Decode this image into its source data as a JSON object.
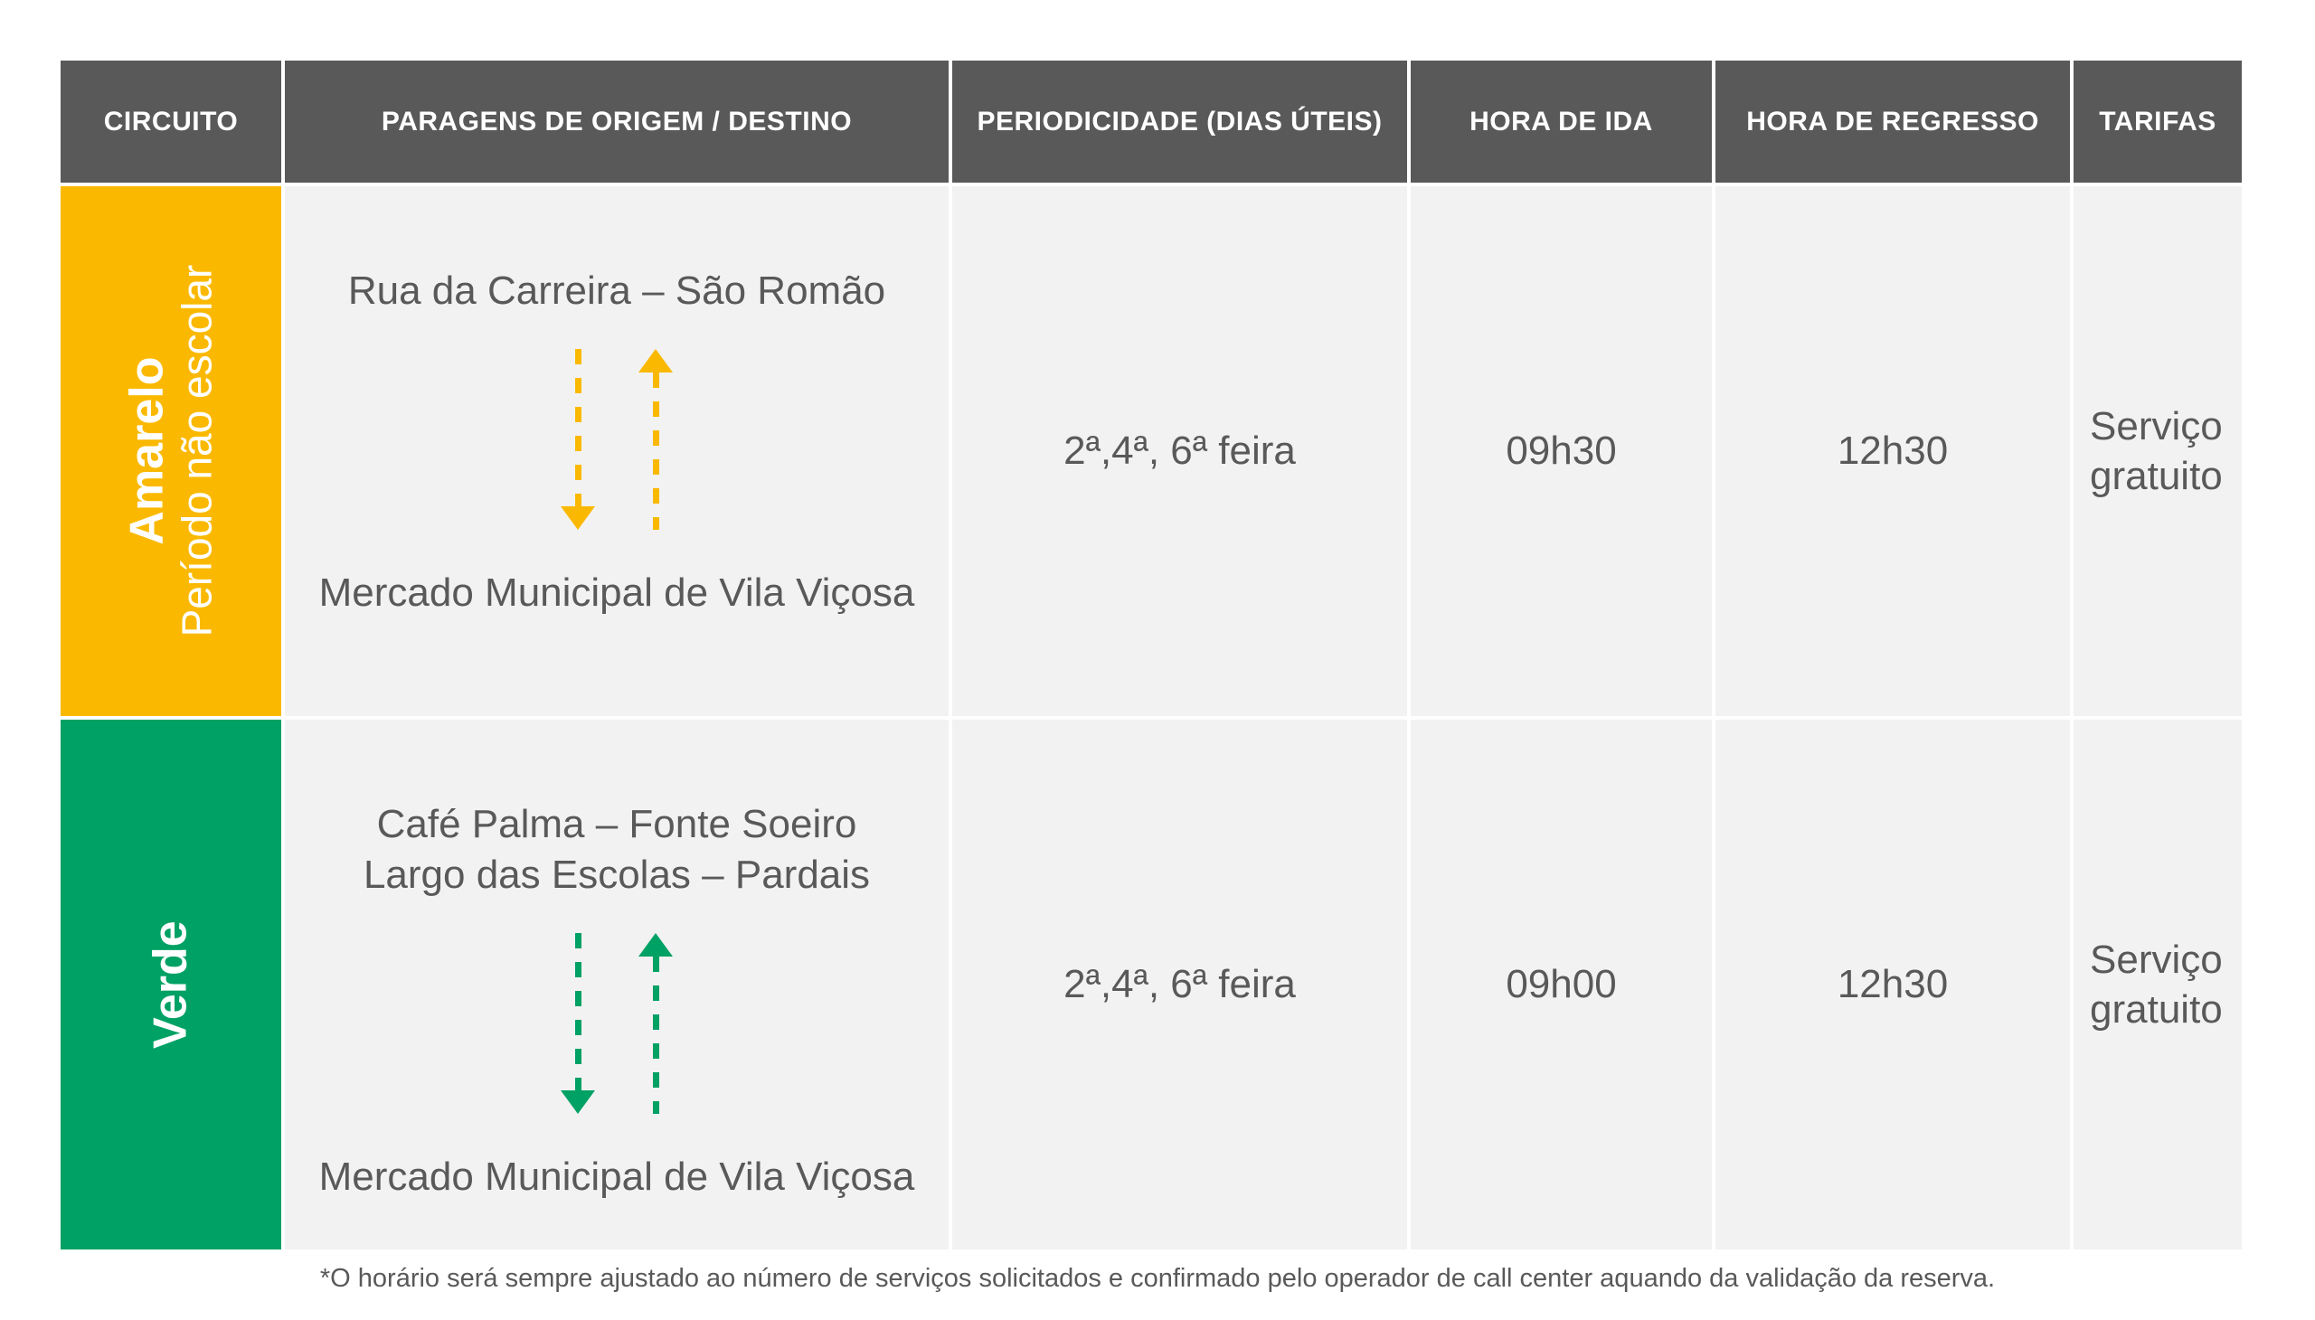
{
  "colors": {
    "header_bg": "#595959",
    "header_text": "#FFFFFF",
    "cell_bg": "#F2F2F2",
    "body_text": "#595959",
    "amarelo": "#FAB900",
    "verde": "#00A164"
  },
  "table": {
    "header": {
      "columns": [
        "CIRCUITO",
        "PARAGENS DE ORIGEM / DESTINO",
        "PERIODICIDADE (DIAS ÚTEIS)",
        "HORA DE IDA",
        "HORA DE REGRESSO",
        "TARIFAS"
      ]
    },
    "rows": [
      {
        "circuit": {
          "name": "Amarelo",
          "subtitle": "Período não escolar",
          "color": "#FAB900"
        },
        "origin": "Rua da Carreira – São Romão",
        "destination": "Mercado Municipal de Vila Viçosa",
        "periodicity": "2ª,4ª, 6ª feira",
        "departure": "09h30",
        "return": "12h30",
        "fare": "Serviço gratuito"
      },
      {
        "circuit": {
          "name": "Verde",
          "subtitle": "",
          "color": "#00A164"
        },
        "origin": "Café Palma – Fonte Soeiro",
        "origin_line2": "Largo das Escolas – Pardais",
        "destination": "Mercado Municipal de Vila Viçosa",
        "periodicity": "2ª,4ª, 6ª feira",
        "departure": "09h00",
        "return": "12h30",
        "fare": "Serviço gratuito"
      }
    ],
    "footnote": "*O horário será sempre ajustado ao número de serviços solicitados e confirmado pelo operador de call center aquando da validação da reserva."
  }
}
